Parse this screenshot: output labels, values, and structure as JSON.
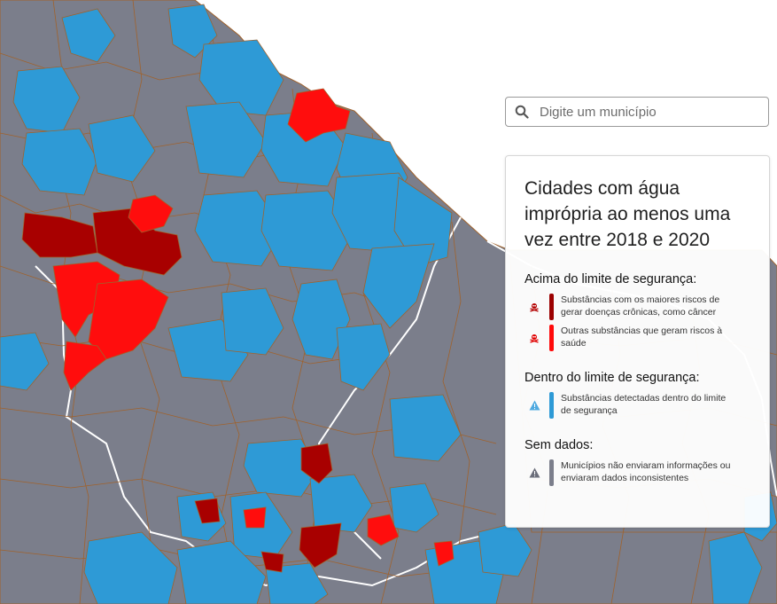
{
  "search": {
    "placeholder": "Digite um município"
  },
  "legend": {
    "title": "Cidades com água imprópria ao menos uma vez entre 2018 e 2020",
    "sections": [
      {
        "heading": "Acima do limite de segurança:",
        "items": [
          {
            "icon": "skull-icon",
            "color": "#9b0000",
            "text": "Substâncias com os maiores riscos de gerar doenças crônicas, como câncer"
          },
          {
            "icon": "skull-icon",
            "color": "#ff0a0a",
            "text": "Outras substâncias que geram riscos à saúde"
          }
        ]
      },
      {
        "heading": "Dentro do limite de segurança:",
        "items": [
          {
            "icon": "warning-icon",
            "color": "#2e9ad6",
            "text": "Substâncias detectadas dentro do limite de segurança"
          }
        ]
      },
      {
        "heading": "Sem dados:",
        "items": [
          {
            "icon": "warning-icon",
            "color": "#7b7e8b",
            "text": "Municípios não enviaram informações ou enviaram dados inconsistentes"
          }
        ]
      }
    ]
  },
  "colors": {
    "no_data": "#7b7e8b",
    "within_limit": "#2e9ad6",
    "high_risk": "#a80000",
    "other_risk": "#ff0d0d",
    "border": "#a0622c",
    "outside_state": "#ffffff"
  }
}
